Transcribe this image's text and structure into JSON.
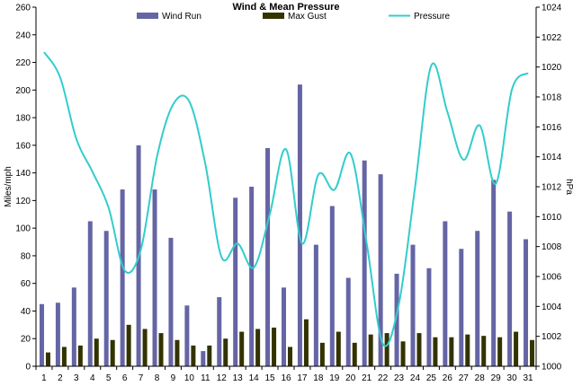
{
  "chart_data": {
    "type": "bar",
    "title": "Wind & Mean Pressure",
    "ylabel": "Miles/mph",
    "y2label": "hPa",
    "ylim": [
      0,
      260
    ],
    "y2lim": [
      1000,
      1024
    ],
    "yticks": [
      0,
      20,
      40,
      60,
      80,
      100,
      120,
      140,
      160,
      180,
      200,
      220,
      240,
      260
    ],
    "y2ticks": [
      1000,
      1002,
      1004,
      1006,
      1008,
      1010,
      1012,
      1014,
      1016,
      1018,
      1020,
      1022,
      1024
    ],
    "categories": [
      "1",
      "2",
      "3",
      "4",
      "5",
      "6",
      "7",
      "8",
      "9",
      "10",
      "11",
      "12",
      "13",
      "14",
      "15",
      "16",
      "17",
      "18",
      "19",
      "20",
      "21",
      "22",
      "23",
      "24",
      "25",
      "26",
      "27",
      "28",
      "29",
      "30",
      "31"
    ],
    "legend_position": "top",
    "series": [
      {
        "name": "Wind Run",
        "kind": "bar",
        "axis": "left",
        "color": "#6565a5",
        "values": [
          45,
          46,
          57,
          105,
          98,
          128,
          160,
          128,
          93,
          44,
          11,
          50,
          122,
          130,
          158,
          57,
          204,
          88,
          116,
          64,
          149,
          139,
          67,
          88,
          71,
          105,
          85,
          98,
          135,
          112,
          92
        ]
      },
      {
        "name": "Max Gust",
        "kind": "bar",
        "axis": "left",
        "color": "#333300",
        "values": [
          10,
          14,
          15,
          20,
          19,
          30,
          27,
          24,
          19,
          15,
          15,
          20,
          25,
          27,
          28,
          14,
          34,
          17,
          25,
          17,
          23,
          24,
          18,
          24,
          21,
          21,
          23,
          22,
          21,
          25,
          19
        ]
      },
      {
        "name": "Pressure",
        "kind": "line",
        "axis": "right",
        "color": "#33cccc",
        "values": [
          1021.0,
          1019.3,
          1015.2,
          1013.0,
          1010.6,
          1006.4,
          1007.8,
          1014.0,
          1017.5,
          1017.7,
          1013.5,
          1007.3,
          1008.2,
          1006.6,
          1010.2,
          1014.5,
          1008.2,
          1012.8,
          1011.8,
          1014.2,
          1008.2,
          1001.5,
          1004.2,
          1012.0,
          1020.1,
          1017.0,
          1013.8,
          1016.1,
          1012.2,
          1018.5,
          1019.6
        ]
      }
    ]
  }
}
